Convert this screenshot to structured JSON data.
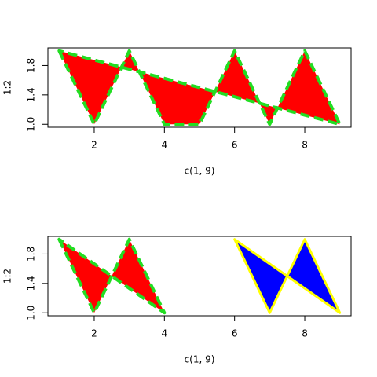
{
  "chart_data": [
    {
      "type": "polygon",
      "xlabel": "c(1, 9)",
      "ylabel": "1:2",
      "xlim": [
        0.68,
        9.32
      ],
      "ylim": [
        0.96,
        2.04
      ],
      "xticks": [
        2,
        4,
        6,
        8
      ],
      "yticks": [
        {
          "value": 1.0,
          "label": "1.0"
        },
        1.4,
        1.8
      ],
      "series": [
        {
          "x": [
            1,
            2,
            3,
            4,
            5,
            6,
            7,
            8,
            9
          ],
          "y": [
            2,
            1,
            2,
            1,
            1,
            2,
            1,
            2,
            1
          ],
          "fill": "#ff0000",
          "border": "#22dd22",
          "line_style": "dashed"
        }
      ]
    },
    {
      "type": "polygon",
      "xlabel": "c(1, 9)",
      "ylabel": "1:2",
      "xlim": [
        0.68,
        9.32
      ],
      "ylim": [
        0.96,
        2.04
      ],
      "xticks": [
        2,
        4,
        6,
        8
      ],
      "yticks": [
        {
          "value": 1.0,
          "label": "1.0"
        },
        1.4,
        1.8
      ],
      "series": [
        {
          "x": [
            1,
            2,
            3,
            4
          ],
          "y": [
            2,
            1,
            2,
            1
          ],
          "fill": "#ff0000",
          "border": "#22dd22",
          "line_style": "dashed"
        },
        {
          "x": [
            6,
            7,
            8,
            9
          ],
          "y": [
            2,
            1,
            2,
            1
          ],
          "fill": "#0000ff",
          "border": "#ffff00",
          "line_style": "solid"
        }
      ]
    }
  ]
}
